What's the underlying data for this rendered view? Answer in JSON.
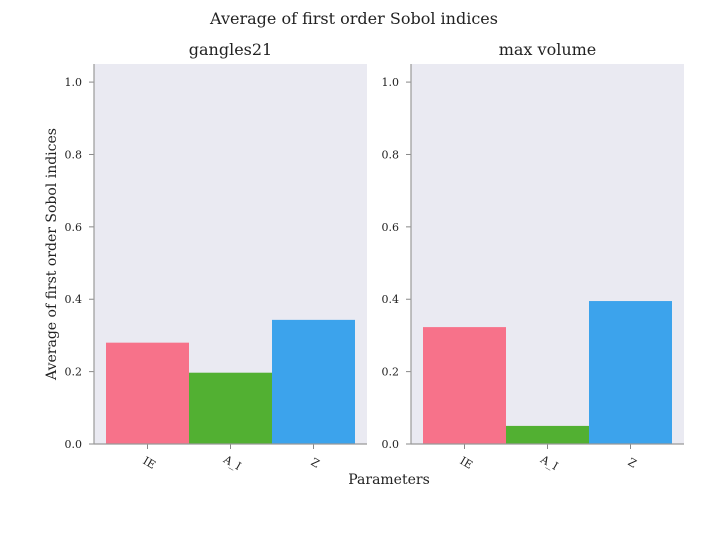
{
  "figure": {
    "suptitle": "Average of first order Sobol indices",
    "xlabel": "Parameters",
    "ylabel": "Average of first order Sobol indices"
  },
  "chart_data": [
    {
      "type": "bar",
      "title": "gangles21",
      "categories": [
        "IE",
        "A_I",
        "Z"
      ],
      "values": [
        0.28,
        0.197,
        0.343
      ],
      "colors": [
        "#f7728a",
        "#52b032",
        "#3ca3ec"
      ],
      "ylim": [
        0,
        1.05
      ],
      "yticks": [
        "0.0",
        "0.2",
        "0.4",
        "0.6",
        "0.8",
        "1.0"
      ],
      "grid": false,
      "background": "#eaeaf2"
    },
    {
      "type": "bar",
      "title": "max volume",
      "categories": [
        "IE",
        "A_I",
        "Z"
      ],
      "values": [
        0.323,
        0.05,
        0.395
      ],
      "colors": [
        "#f7728a",
        "#52b032",
        "#3ca3ec"
      ],
      "ylim": [
        0,
        1.05
      ],
      "yticks": [
        "0.0",
        "0.2",
        "0.4",
        "0.6",
        "0.8",
        "1.0"
      ],
      "grid": false,
      "background": "#eaeaf2"
    }
  ]
}
